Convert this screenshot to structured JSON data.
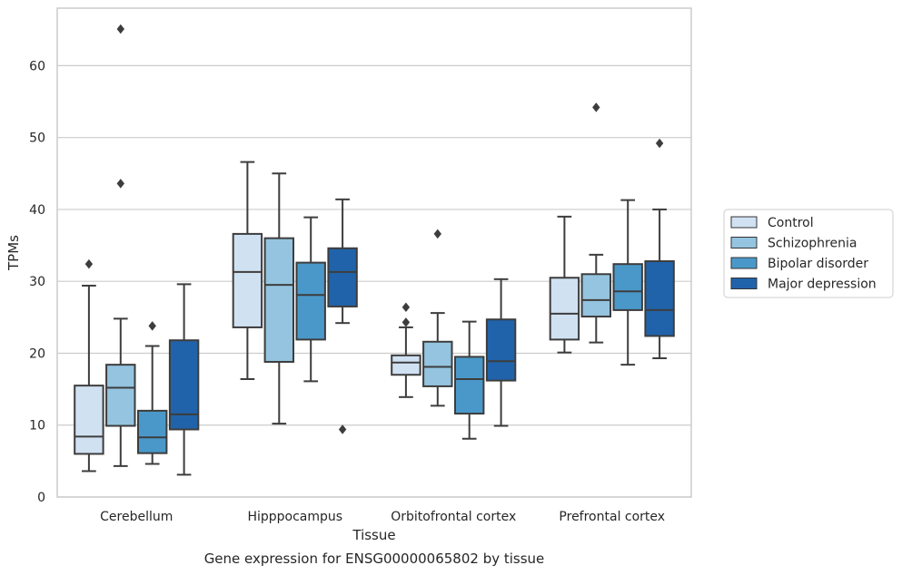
{
  "chart_data": {
    "type": "box",
    "title": "",
    "caption": "Gene expression for ENSG00000065802 by tissue",
    "xlabel": "Tissue",
    "ylabel": "TPMs",
    "ylim": [
      0,
      68
    ],
    "yticks": [
      0,
      10,
      20,
      30,
      40,
      50,
      60
    ],
    "grid": "horizontal",
    "legend_position": "right",
    "categories": [
      "Cerebellum",
      "Hipppocampus",
      "Orbitofrontal cortex",
      "Prefrontal cortex"
    ],
    "series": [
      {
        "name": "Control",
        "color": "#d0e1f2",
        "boxes": [
          {
            "whisker_low": 3.6,
            "q1": 6.0,
            "median": 8.4,
            "q3": 15.5,
            "whisker_high": 29.4,
            "outliers": [
              32.4
            ]
          },
          {
            "whisker_low": 16.4,
            "q1": 23.6,
            "median": 31.3,
            "q3": 36.6,
            "whisker_high": 46.6,
            "outliers": []
          },
          {
            "whisker_low": 13.9,
            "q1": 17.0,
            "median": 18.7,
            "q3": 19.7,
            "whisker_high": 23.6,
            "outliers": [
              24.3,
              26.4
            ]
          },
          {
            "whisker_low": 20.1,
            "q1": 21.9,
            "median": 25.5,
            "q3": 30.5,
            "whisker_high": 39.0,
            "outliers": []
          }
        ]
      },
      {
        "name": "Schizophrenia",
        "color": "#94c4df",
        "boxes": [
          {
            "whisker_low": 4.3,
            "q1": 9.9,
            "median": 15.2,
            "q3": 18.4,
            "whisker_high": 24.8,
            "outliers": [
              43.6,
              65.1
            ]
          },
          {
            "whisker_low": 10.2,
            "q1": 18.8,
            "median": 29.5,
            "q3": 36.0,
            "whisker_high": 45.0,
            "outliers": []
          },
          {
            "whisker_low": 12.7,
            "q1": 15.4,
            "median": 18.1,
            "q3": 21.6,
            "whisker_high": 25.6,
            "outliers": [
              36.6
            ]
          },
          {
            "whisker_low": 21.5,
            "q1": 25.1,
            "median": 27.4,
            "q3": 31.0,
            "whisker_high": 33.7,
            "outliers": [
              54.2
            ]
          }
        ]
      },
      {
        "name": "Bipolar disorder",
        "color": "#4a98c9",
        "boxes": [
          {
            "whisker_low": 4.6,
            "q1": 6.1,
            "median": 8.3,
            "q3": 12.0,
            "whisker_high": 21.0,
            "outliers": [
              23.8
            ]
          },
          {
            "whisker_low": 16.1,
            "q1": 21.9,
            "median": 28.1,
            "q3": 32.6,
            "whisker_high": 38.9,
            "outliers": []
          },
          {
            "whisker_low": 8.1,
            "q1": 11.6,
            "median": 16.4,
            "q3": 19.5,
            "whisker_high": 24.4,
            "outliers": []
          },
          {
            "whisker_low": 18.4,
            "q1": 26.0,
            "median": 28.6,
            "q3": 32.4,
            "whisker_high": 41.3,
            "outliers": []
          }
        ]
      },
      {
        "name": "Major depression",
        "color": "#2163aa",
        "boxes": [
          {
            "whisker_low": 3.1,
            "q1": 9.4,
            "median": 11.5,
            "q3": 21.8,
            "whisker_high": 29.6,
            "outliers": []
          },
          {
            "whisker_low": 24.2,
            "q1": 26.5,
            "median": 31.3,
            "q3": 34.6,
            "whisker_high": 41.4,
            "outliers": [
              9.4
            ]
          },
          {
            "whisker_low": 9.9,
            "q1": 16.2,
            "median": 18.9,
            "q3": 24.7,
            "whisker_high": 30.3,
            "outliers": []
          },
          {
            "whisker_low": 19.3,
            "q1": 22.4,
            "median": 26.0,
            "q3": 32.8,
            "whisker_high": 40.0,
            "outliers": [
              49.2
            ]
          }
        ]
      }
    ]
  }
}
